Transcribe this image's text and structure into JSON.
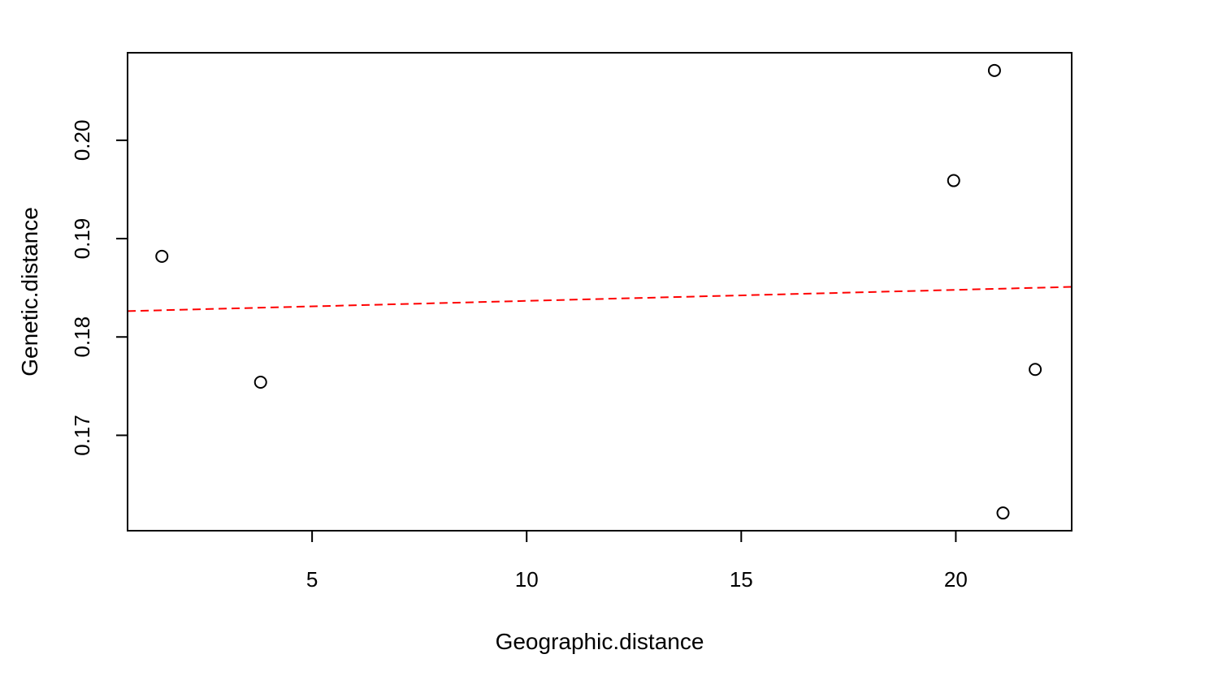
{
  "chart_data": {
    "type": "scatter",
    "title": "",
    "xlabel": "Geographic.distance",
    "ylabel": "Genetic.distance",
    "xlim": [
      0.7,
      22.7
    ],
    "ylim": [
      0.1603,
      0.2089
    ],
    "xticks": [
      5,
      10,
      15,
      20
    ],
    "xtick_labels": [
      "5",
      "10",
      "15",
      "20"
    ],
    "yticks": [
      0.17,
      0.18,
      0.19,
      0.2
    ],
    "ytick_labels": [
      "0.17",
      "0.18",
      "0.19",
      "0.20"
    ],
    "grid": false,
    "points": [
      {
        "x": 1.5,
        "y": 0.1882
      },
      {
        "x": 3.8,
        "y": 0.1754
      },
      {
        "x": 19.95,
        "y": 0.1959
      },
      {
        "x": 20.9,
        "y": 0.2071
      },
      {
        "x": 21.1,
        "y": 0.1621
      },
      {
        "x": 21.85,
        "y": 0.1767
      }
    ],
    "regression_line": {
      "style": "dashed",
      "color": "#ff0000",
      "intercept": 0.18255,
      "slope": 0.000112
    },
    "marker": "open-circle",
    "colors": {
      "points": "#000000",
      "axes": "#000000"
    }
  }
}
